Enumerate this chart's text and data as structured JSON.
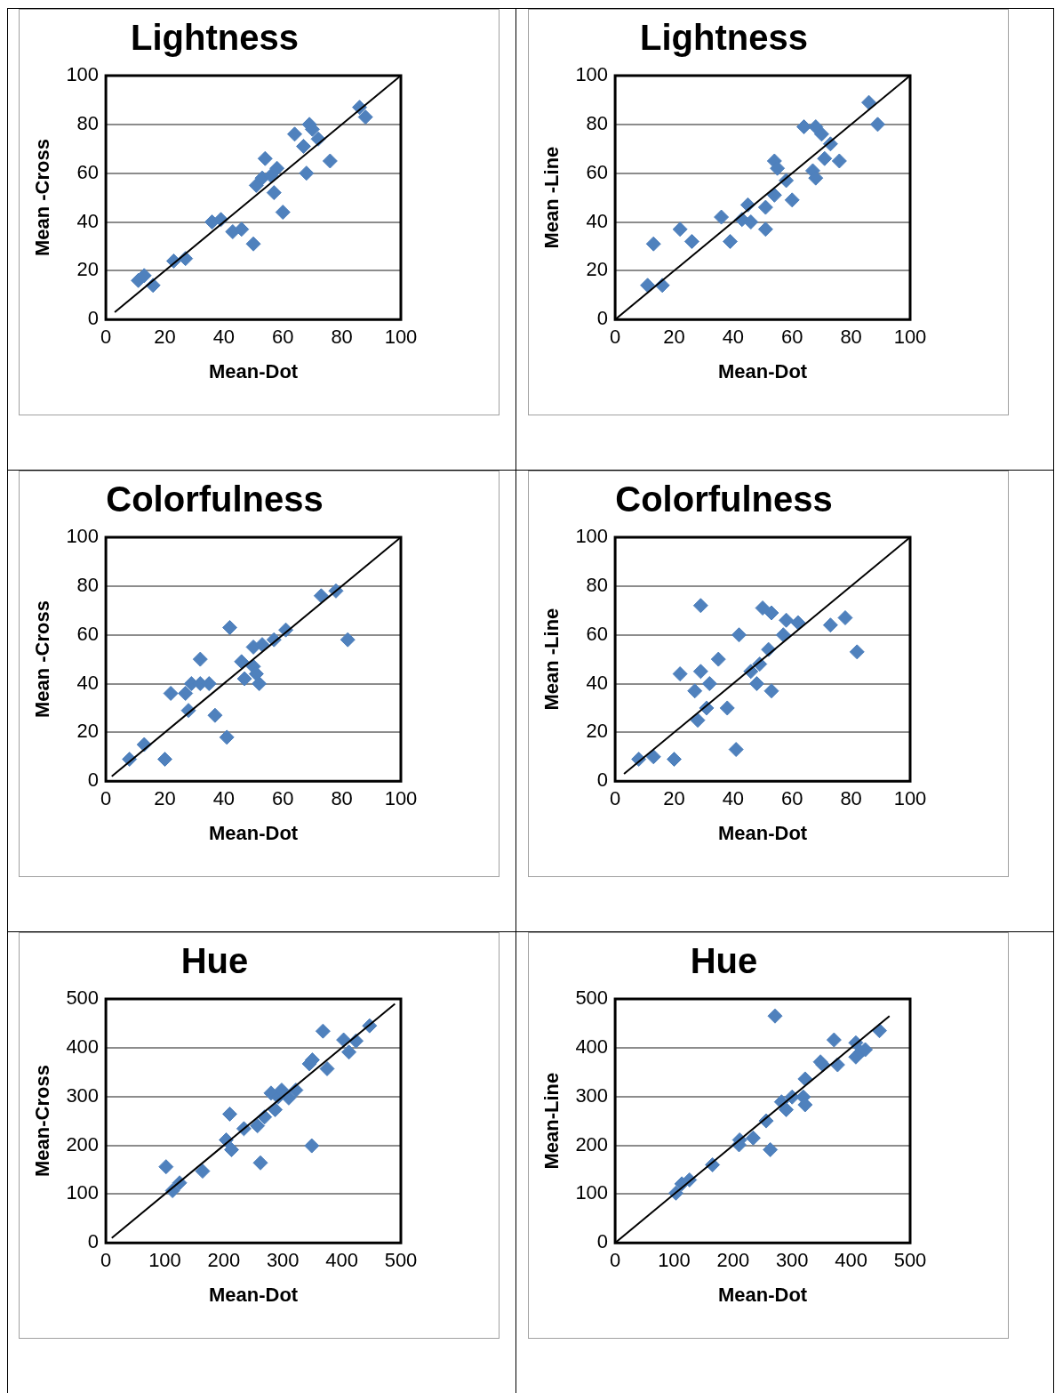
{
  "chart_data": [
    {
      "type": "scatter",
      "title": "Lightness",
      "xlabel": "Mean-Dot",
      "ylabel": "Mean -Cross",
      "xlim": [
        0,
        100
      ],
      "ylim": [
        0,
        100
      ],
      "xticks": [
        0,
        20,
        40,
        60,
        80,
        100
      ],
      "yticks": [
        0,
        20,
        40,
        60,
        80,
        100
      ],
      "grid": "y",
      "marker": "diamond",
      "series": [
        {
          "type": "scatter",
          "color": "#4f81bd",
          "x": [
            11,
            13,
            16,
            23,
            27,
            36,
            39,
            43,
            46,
            50,
            51,
            54,
            53,
            56,
            57,
            58,
            60,
            64,
            68,
            69,
            70,
            72,
            76,
            86,
            88,
            67
          ],
          "values": [
            16,
            18,
            14,
            24,
            25,
            40,
            41,
            36,
            37,
            31,
            55,
            66,
            58,
            59,
            52,
            62,
            44,
            76,
            60,
            80,
            78,
            74,
            65,
            87,
            83,
            71
          ]
        },
        {
          "type": "line",
          "color": "#000000",
          "marker": "none",
          "x": [
            3,
            100
          ],
          "values": [
            3,
            100
          ]
        }
      ]
    },
    {
      "type": "scatter",
      "title": "Lightness",
      "xlabel": "Mean-Dot",
      "ylabel": "Mean -Line",
      "xlim": [
        0,
        100
      ],
      "ylim": [
        0,
        100
      ],
      "xticks": [
        0,
        20,
        40,
        60,
        80,
        100
      ],
      "yticks": [
        0,
        20,
        40,
        60,
        80,
        100
      ],
      "grid": "y",
      "marker": "diamond",
      "series": [
        {
          "type": "scatter",
          "color": "#4f81bd",
          "x": [
            11,
            16,
            13,
            22,
            26,
            36,
            39,
            45,
            43,
            46,
            51,
            51,
            54,
            55,
            54,
            58,
            60,
            64,
            67,
            68,
            68,
            70,
            71,
            73,
            76,
            86,
            89
          ],
          "values": [
            14,
            14,
            31,
            37,
            32,
            42,
            32,
            47,
            41,
            40,
            37,
            46,
            65,
            62,
            51,
            57,
            49,
            79,
            61,
            58,
            79,
            76,
            66,
            72,
            65,
            89,
            80
          ]
        },
        {
          "type": "line",
          "color": "#000000",
          "marker": "none",
          "x": [
            0,
            100
          ],
          "values": [
            0,
            100
          ]
        }
      ]
    },
    {
      "type": "scatter",
      "title": "Colorfulness",
      "xlabel": "Mean-Dot",
      "ylabel": "Mean -Cross",
      "xlim": [
        0,
        100
      ],
      "ylim": [
        0,
        100
      ],
      "xticks": [
        0,
        20,
        40,
        60,
        80,
        100
      ],
      "yticks": [
        0,
        20,
        40,
        60,
        80,
        100
      ],
      "grid": "y",
      "marker": "diamond",
      "series": [
        {
          "type": "scatter",
          "color": "#4f81bd",
          "x": [
            8,
            13,
            20,
            22,
            32,
            28,
            27,
            29,
            32,
            35,
            37,
            41,
            42,
            46,
            50,
            47,
            50,
            52,
            53,
            57,
            61,
            73,
            78,
            82,
            51
          ],
          "values": [
            9,
            15,
            9,
            36,
            50,
            29,
            36,
            40,
            40,
            40,
            27,
            18,
            63,
            49,
            55,
            42,
            47,
            40,
            56,
            58,
            62,
            76,
            78,
            58,
            44
          ]
        },
        {
          "type": "line",
          "color": "#000000",
          "marker": "none",
          "x": [
            2,
            100
          ],
          "values": [
            2,
            100
          ]
        }
      ]
    },
    {
      "type": "scatter",
      "title": "Colorfulness",
      "xlabel": "Mean-Dot",
      "ylabel": "Mean -Line",
      "xlim": [
        0,
        100
      ],
      "ylim": [
        0,
        100
      ],
      "xticks": [
        0,
        20,
        40,
        60,
        80,
        100
      ],
      "yticks": [
        0,
        20,
        40,
        60,
        80,
        100
      ],
      "grid": "y",
      "marker": "diamond",
      "series": [
        {
          "type": "scatter",
          "color": "#4f81bd",
          "x": [
            8,
            13,
            20,
            29,
            22,
            27,
            29,
            32,
            28,
            31,
            35,
            38,
            41,
            42,
            46,
            48,
            49,
            52,
            53,
            50,
            53,
            57,
            58,
            62,
            73,
            78,
            82
          ],
          "values": [
            9,
            10,
            9,
            72,
            44,
            37,
            45,
            40,
            25,
            30,
            50,
            30,
            13,
            60,
            45,
            40,
            48,
            54,
            37,
            71,
            69,
            60,
            66,
            65,
            64,
            67,
            53
          ]
        },
        {
          "type": "line",
          "color": "#000000",
          "marker": "none",
          "x": [
            3,
            100
          ],
          "values": [
            3,
            100
          ]
        }
      ]
    },
    {
      "type": "scatter",
      "title": "Hue",
      "xlabel": "Mean-Dot",
      "ylabel": "Mean-Cross",
      "xlim": [
        0,
        500
      ],
      "ylim": [
        0,
        500
      ],
      "xticks": [
        0,
        100,
        200,
        300,
        400,
        500
      ],
      "yticks": [
        0,
        100,
        200,
        300,
        400,
        500
      ],
      "grid": "y",
      "marker": "diamond",
      "series": [
        {
          "type": "scatter",
          "color": "#4f81bd",
          "x": [
            102,
            113,
            125,
            164,
            210,
            204,
            213,
            234,
            262,
            257,
            269,
            287,
            280,
            292,
            310,
            322,
            298,
            349,
            345,
            350,
            375,
            368,
            403,
            412,
            424,
            447
          ],
          "values": [
            156,
            107,
            123,
            147,
            264,
            211,
            191,
            234,
            164,
            240,
            258,
            273,
            307,
            299,
            297,
            313,
            313,
            199,
            367,
            375,
            357,
            434,
            416,
            391,
            414,
            445
          ]
        },
        {
          "type": "line",
          "color": "#000000",
          "marker": "none",
          "x": [
            10,
            490
          ],
          "values": [
            10,
            490
          ]
        }
      ]
    },
    {
      "type": "scatter",
      "title": "Hue",
      "xlabel": "Mean-Dot",
      "ylabel": "Mean-Line",
      "xlim": [
        0,
        500
      ],
      "ylim": [
        0,
        500
      ],
      "xticks": [
        0,
        100,
        200,
        300,
        400,
        500
      ],
      "yticks": [
        0,
        100,
        200,
        300,
        400,
        500
      ],
      "grid": "y",
      "marker": "diamond",
      "series": [
        {
          "type": "scatter",
          "color": "#4f81bd",
          "x": [
            103,
            113,
            126,
            165,
            210,
            211,
            234,
            256,
            263,
            271,
            282,
            290,
            300,
            319,
            322,
            322,
            348,
            352,
            371,
            377,
            408,
            408,
            416,
            424,
            448
          ],
          "values": [
            102,
            121,
            129,
            160,
            201,
            211,
            215,
            250,
            191,
            465,
            289,
            273,
            299,
            299,
            283,
            336,
            371,
            365,
            416,
            365,
            410,
            381,
            391,
            396,
            435
          ]
        },
        {
          "type": "line",
          "color": "#000000",
          "marker": "none",
          "x": [
            0,
            465
          ],
          "values": [
            0,
            465
          ]
        }
      ]
    }
  ]
}
